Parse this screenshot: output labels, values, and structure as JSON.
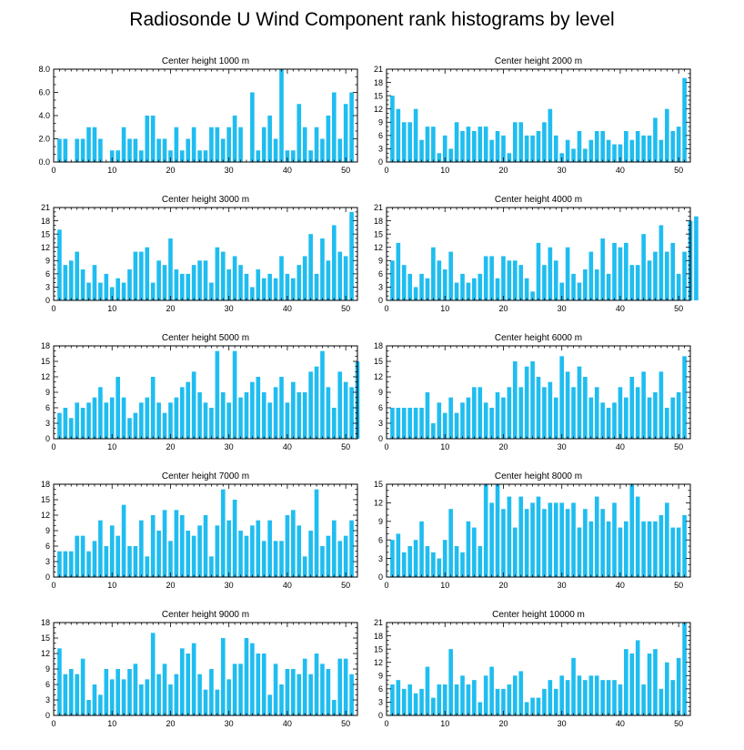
{
  "title": "Radiosonde U Wind Component rank histograms by level",
  "colors": {
    "bar": "#1fbdf0",
    "axis": "#000000"
  },
  "chart_data": [
    {
      "type": "bar",
      "title": "Center height 1000 m",
      "xlim": [
        0,
        52
      ],
      "ylim": [
        0,
        8
      ],
      "xticks": [
        0,
        10,
        20,
        30,
        40,
        50
      ],
      "yticks": [
        0,
        2,
        4,
        6,
        8
      ],
      "yticklabels": [
        "0.0",
        "2.0",
        "4.0",
        "6.0",
        "8.0"
      ],
      "values": [
        2,
        2,
        0,
        2,
        2,
        3,
        3,
        2,
        0,
        1,
        1,
        3,
        2,
        2,
        1,
        4,
        4,
        2,
        2,
        1,
        3,
        1,
        2,
        3,
        1,
        1,
        3,
        3,
        2,
        3,
        4,
        3,
        0,
        6,
        1,
        3,
        4,
        2,
        8,
        1,
        1,
        5,
        3,
        1,
        3,
        2,
        4,
        6,
        2,
        5,
        6,
        0
      ]
    },
    {
      "type": "bar",
      "title": "Center height 2000 m",
      "xlim": [
        0,
        52
      ],
      "ylim": [
        0,
        21
      ],
      "xticks": [
        0,
        10,
        20,
        30,
        40,
        50
      ],
      "yticks": [
        0,
        3,
        6,
        9,
        12,
        15,
        18,
        21
      ],
      "yticklabels": [
        "0",
        "3",
        "6",
        "9",
        "12",
        "15",
        "18",
        "21"
      ],
      "values": [
        15,
        12,
        9,
        9,
        12,
        5,
        8,
        8,
        2,
        6,
        3,
        9,
        7,
        8,
        7,
        8,
        8,
        5,
        7,
        6,
        2,
        9,
        9,
        6,
        6,
        7,
        9,
        12,
        6,
        2,
        5,
        3,
        7,
        3,
        5,
        7,
        7,
        5,
        4,
        4,
        7,
        5,
        7,
        6,
        6,
        10,
        5,
        12,
        7,
        8,
        19,
        0
      ]
    },
    {
      "type": "bar",
      "title": "Center height 3000 m",
      "xlim": [
        0,
        52
      ],
      "ylim": [
        0,
        21
      ],
      "xticks": [
        0,
        10,
        20,
        30,
        40,
        50
      ],
      "yticks": [
        0,
        3,
        6,
        9,
        12,
        15,
        18,
        21
      ],
      "yticklabels": [
        "0",
        "3",
        "6",
        "9",
        "12",
        "15",
        "18",
        "21"
      ],
      "values": [
        16,
        8,
        9,
        11,
        7,
        4,
        8,
        4,
        6,
        3,
        5,
        4,
        7,
        11,
        11,
        12,
        4,
        9,
        8,
        14,
        7,
        6,
        6,
        8,
        9,
        9,
        4,
        12,
        11,
        7,
        10,
        8,
        6,
        3,
        7,
        5,
        6,
        5,
        10,
        6,
        5,
        8,
        10,
        15,
        6,
        14,
        9,
        17,
        11,
        10,
        20,
        0
      ]
    },
    {
      "type": "bar",
      "title": "Center height 4000 m",
      "xlim": [
        0,
        52
      ],
      "ylim": [
        0,
        21
      ],
      "xticks": [
        0,
        10,
        20,
        30,
        40,
        50
      ],
      "yticks": [
        0,
        3,
        6,
        9,
        12,
        15,
        18,
        21
      ],
      "yticklabels": [
        "0",
        "3",
        "6",
        "9",
        "12",
        "15",
        "18",
        "21"
      ],
      "values": [
        9,
        13,
        8,
        6,
        3,
        6,
        5,
        12,
        9,
        7,
        11,
        4,
        6,
        4,
        5,
        6,
        10,
        10,
        5,
        10,
        9,
        9,
        8,
        5,
        2,
        13,
        8,
        12,
        9,
        4,
        12,
        6,
        4,
        7,
        11,
        7,
        14,
        6,
        13,
        12,
        13,
        8,
        8,
        15,
        9,
        11,
        17,
        11,
        13,
        6,
        11,
        18,
        19
      ]
    },
    {
      "type": "bar",
      "title": "Center height 5000 m",
      "xlim": [
        0,
        52
      ],
      "ylim": [
        0,
        18
      ],
      "xticks": [
        0,
        10,
        20,
        30,
        40,
        50
      ],
      "yticks": [
        0,
        3,
        6,
        9,
        12,
        15,
        18
      ],
      "yticklabels": [
        "0",
        "3",
        "6",
        "9",
        "12",
        "15",
        "18"
      ],
      "values": [
        5,
        6,
        4,
        7,
        6,
        7,
        8,
        10,
        7,
        8,
        12,
        8,
        4,
        5,
        7,
        8,
        12,
        7,
        5,
        7,
        8,
        10,
        11,
        13,
        9,
        7,
        6,
        17,
        9,
        7,
        17,
        8,
        9,
        11,
        12,
        9,
        7,
        10,
        12,
        7,
        11,
        9,
        9,
        13,
        14,
        17,
        10,
        6,
        13,
        11,
        10,
        15
      ]
    },
    {
      "type": "bar",
      "title": "Center height 6000 m",
      "xlim": [
        0,
        52
      ],
      "ylim": [
        0,
        18
      ],
      "xticks": [
        0,
        10,
        20,
        30,
        40,
        50
      ],
      "yticks": [
        0,
        3,
        6,
        9,
        12,
        15,
        18
      ],
      "yticklabels": [
        "0",
        "3",
        "6",
        "9",
        "12",
        "15",
        "18"
      ],
      "values": [
        6,
        6,
        6,
        6,
        6,
        6,
        9,
        3,
        7,
        5,
        8,
        5,
        7,
        8,
        10,
        10,
        7,
        6,
        9,
        8,
        10,
        15,
        10,
        14,
        15,
        12,
        10,
        11,
        8,
        16,
        13,
        10,
        14,
        12,
        8,
        10,
        7,
        6,
        7,
        10,
        8,
        12,
        10,
        13,
        8,
        9,
        13,
        6,
        8,
        9,
        16
      ]
    },
    {
      "type": "bar",
      "title": "Center height 7000 m",
      "xlim": [
        0,
        52
      ],
      "ylim": [
        0,
        18
      ],
      "xticks": [
        0,
        10,
        20,
        30,
        40,
        50
      ],
      "yticks": [
        0,
        3,
        6,
        9,
        12,
        15,
        18
      ],
      "yticklabels": [
        "0",
        "3",
        "6",
        "9",
        "12",
        "15",
        "18"
      ],
      "values": [
        5,
        5,
        5,
        8,
        8,
        5,
        7,
        11,
        6,
        10,
        8,
        14,
        6,
        6,
        11,
        4,
        12,
        9,
        13,
        7,
        13,
        12,
        9,
        8,
        10,
        12,
        4,
        10,
        17,
        11,
        15,
        9,
        8,
        10,
        11,
        7,
        11,
        7,
        7,
        12,
        13,
        10,
        4,
        9,
        17,
        6,
        8,
        11,
        7,
        8,
        11
      ]
    },
    {
      "type": "bar",
      "title": "Center height 8000 m",
      "xlim": [
        0,
        52
      ],
      "ylim": [
        0,
        15
      ],
      "xticks": [
        0,
        10,
        20,
        30,
        40,
        50
      ],
      "yticks": [
        0,
        3,
        6,
        9,
        12,
        15
      ],
      "yticklabels": [
        "0",
        "3",
        "6",
        "9",
        "12",
        "15"
      ],
      "values": [
        6,
        7,
        4,
        5,
        6,
        9,
        5,
        4,
        3,
        6,
        11,
        5,
        4,
        9,
        8,
        5,
        15,
        12,
        15,
        11,
        13,
        8,
        13,
        11,
        12,
        13,
        11,
        12,
        12,
        12,
        11,
        12,
        8,
        11,
        9,
        13,
        11,
        9,
        12,
        8,
        9,
        15,
        13,
        9,
        9,
        9,
        10,
        12,
        8,
        8,
        10
      ]
    },
    {
      "type": "bar",
      "title": "Center height 9000 m",
      "xlim": [
        0,
        52
      ],
      "ylim": [
        0,
        18
      ],
      "xticks": [
        0,
        10,
        20,
        30,
        40,
        50
      ],
      "yticks": [
        0,
        3,
        6,
        9,
        12,
        15,
        18
      ],
      "yticklabels": [
        "0",
        "3",
        "6",
        "9",
        "12",
        "15",
        "18"
      ],
      "values": [
        13,
        8,
        9,
        8,
        11,
        3,
        6,
        4,
        9,
        7,
        9,
        7,
        9,
        10,
        6,
        7,
        16,
        8,
        10,
        6,
        8,
        13,
        12,
        14,
        8,
        5,
        9,
        5,
        15,
        7,
        10,
        10,
        15,
        14,
        12,
        12,
        4,
        10,
        6,
        9,
        9,
        8,
        11,
        8,
        12,
        10,
        9,
        3,
        11,
        11,
        8
      ]
    },
    {
      "type": "bar",
      "title": "Center height 10000 m",
      "xlim": [
        0,
        52
      ],
      "ylim": [
        0,
        21
      ],
      "xticks": [
        0,
        10,
        20,
        30,
        40,
        50
      ],
      "yticks": [
        0,
        3,
        6,
        9,
        12,
        15,
        18,
        21
      ],
      "yticklabels": [
        "0",
        "3",
        "6",
        "9",
        "12",
        "15",
        "18",
        "21"
      ],
      "values": [
        7,
        8,
        6,
        7,
        5,
        6,
        11,
        4,
        7,
        7,
        15,
        7,
        9,
        7,
        8,
        3,
        9,
        11,
        6,
        6,
        7,
        9,
        10,
        3,
        4,
        4,
        6,
        8,
        6,
        9,
        8,
        13,
        9,
        8,
        9,
        9,
        8,
        8,
        8,
        7,
        15,
        14,
        17,
        7,
        14,
        15,
        6,
        12,
        8,
        13,
        21
      ]
    }
  ]
}
